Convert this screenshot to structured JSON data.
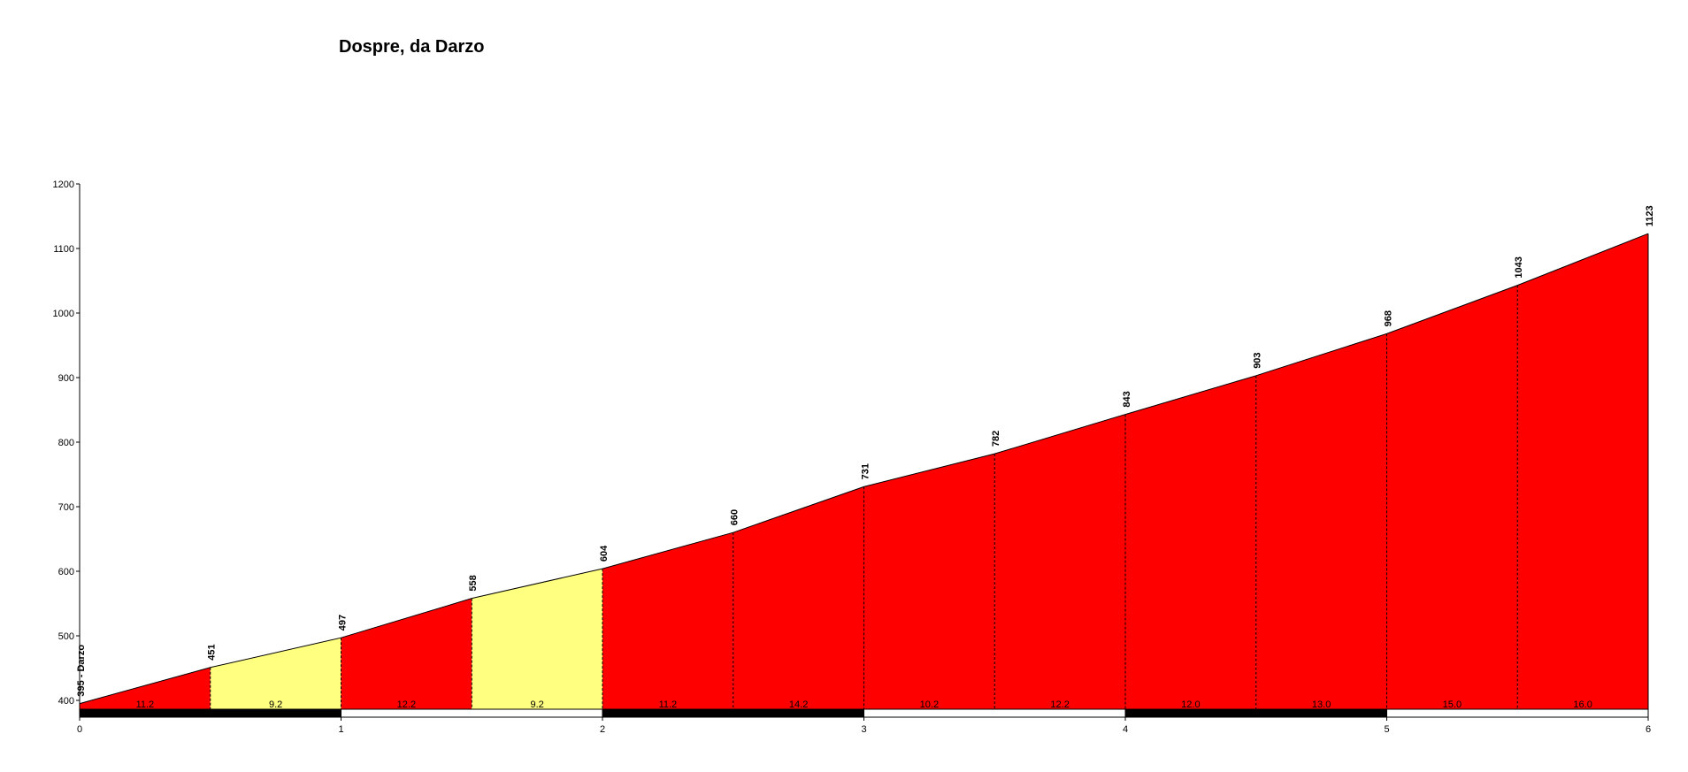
{
  "chart_data": {
    "type": "area",
    "title": "Dospre, da Darzo",
    "xlabel": "",
    "ylabel": "",
    "xlim": [
      0,
      6
    ],
    "ylim": [
      370,
      1200
    ],
    "x_ticks": [
      "0",
      "1",
      "2",
      "3",
      "4",
      "5",
      "6"
    ],
    "y_ticks": [
      "400",
      "500",
      "600",
      "700",
      "800",
      "900",
      "1000",
      "1100",
      "1200"
    ],
    "points": [
      {
        "x": 0,
        "y": 395,
        "label": "395 - Darzo"
      },
      {
        "x": 0.5,
        "y": 451,
        "label": "451"
      },
      {
        "x": 1,
        "y": 497,
        "label": "497"
      },
      {
        "x": 1.5,
        "y": 558,
        "label": "558"
      },
      {
        "x": 2,
        "y": 604,
        "label": "604"
      },
      {
        "x": 2.5,
        "y": 660,
        "label": "660"
      },
      {
        "x": 3,
        "y": 731,
        "label": "731"
      },
      {
        "x": 3.5,
        "y": 782,
        "label": "782"
      },
      {
        "x": 4,
        "y": 843,
        "label": "843"
      },
      {
        "x": 4.5,
        "y": 903,
        "label": "903"
      },
      {
        "x": 5,
        "y": 968,
        "label": "968"
      },
      {
        "x": 5.5,
        "y": 1043,
        "label": "1043"
      },
      {
        "x": 6,
        "y": 1123,
        "label": "1123"
      }
    ],
    "segments": [
      {
        "from": 0,
        "to": 0.5,
        "grade": "11.2",
        "color": "#ff0000"
      },
      {
        "from": 0.5,
        "to": 1,
        "grade": "9.2",
        "color": "#ffff80"
      },
      {
        "from": 1,
        "to": 1.5,
        "grade": "12.2",
        "color": "#ff0000"
      },
      {
        "from": 1.5,
        "to": 2,
        "grade": "9.2",
        "color": "#ffff80"
      },
      {
        "from": 2,
        "to": 2.5,
        "grade": "11.2",
        "color": "#ff0000"
      },
      {
        "from": 2.5,
        "to": 3,
        "grade": "14.2",
        "color": "#ff0000"
      },
      {
        "from": 3,
        "to": 3.5,
        "grade": "10.2",
        "color": "#ff0000"
      },
      {
        "from": 3.5,
        "to": 4,
        "grade": "12.2",
        "color": "#ff0000"
      },
      {
        "from": 4,
        "to": 4.5,
        "grade": "12.0",
        "color": "#ff0000"
      },
      {
        "from": 4.5,
        "to": 5,
        "grade": "13.0",
        "color": "#ff0000"
      },
      {
        "from": 5,
        "to": 5.5,
        "grade": "15.0",
        "color": "#ff0000"
      },
      {
        "from": 5.5,
        "to": 6,
        "grade": "16.0",
        "color": "#ff0000"
      }
    ],
    "km_bar_colors": [
      "#000000",
      "#ffffff",
      "#000000",
      "#ffffff",
      "#000000",
      "#ffffff"
    ],
    "grid": false,
    "legend": "none"
  }
}
